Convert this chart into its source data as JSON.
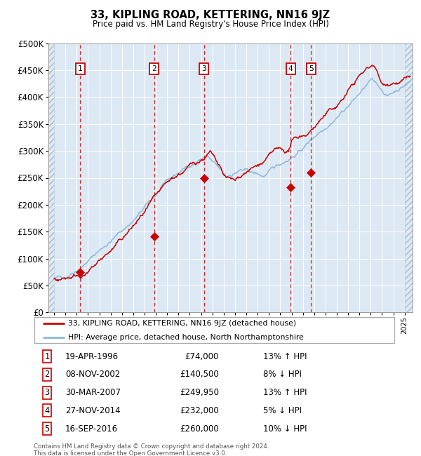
{
  "title": "33, KIPLING ROAD, KETTERING, NN16 9JZ",
  "subtitle": "Price paid vs. HM Land Registry's House Price Index (HPI)",
  "legend_line1": "33, KIPLING ROAD, KETTERING, NN16 9JZ (detached house)",
  "legend_line2": "HPI: Average price, detached house, North Northamptonshire",
  "footer_line1": "Contains HM Land Registry data © Crown copyright and database right 2024.",
  "footer_line2": "This data is licensed under the Open Government Licence v3.0.",
  "sale_points": [
    {
      "label": "1",
      "date": "1996-04-19",
      "price": 74000,
      "x_pos": 1996.3
    },
    {
      "label": "2",
      "date": "2002-11-08",
      "price": 140500,
      "x_pos": 2002.86
    },
    {
      "label": "3",
      "date": "2007-03-30",
      "price": 249950,
      "x_pos": 2007.25
    },
    {
      "label": "4",
      "date": "2014-11-27",
      "price": 232000,
      "x_pos": 2014.91
    },
    {
      "label": "5",
      "date": "2016-09-16",
      "price": 260000,
      "x_pos": 2016.72
    }
  ],
  "table_rows": [
    [
      "1",
      "19-APR-1996",
      "£74,000",
      "13% ↑ HPI"
    ],
    [
      "2",
      "08-NOV-2002",
      "£140,500",
      "8% ↓ HPI"
    ],
    [
      "3",
      "30-MAR-2007",
      "£249,950",
      "13% ↑ HPI"
    ],
    [
      "4",
      "27-NOV-2014",
      "£232,000",
      "5% ↓ HPI"
    ],
    [
      "5",
      "16-SEP-2016",
      "£260,000",
      "10% ↓ HPI"
    ]
  ],
  "hpi_color": "#8ab8d8",
  "price_color": "#cc0000",
  "dashed_color": "#cc0000",
  "plot_bg_color": "#dce9f5",
  "ylim": [
    0,
    500000
  ],
  "yticks": [
    0,
    50000,
    100000,
    150000,
    200000,
    250000,
    300000,
    350000,
    400000,
    450000,
    500000
  ],
  "xlim_start": 1993.5,
  "xlim_end": 2025.7
}
